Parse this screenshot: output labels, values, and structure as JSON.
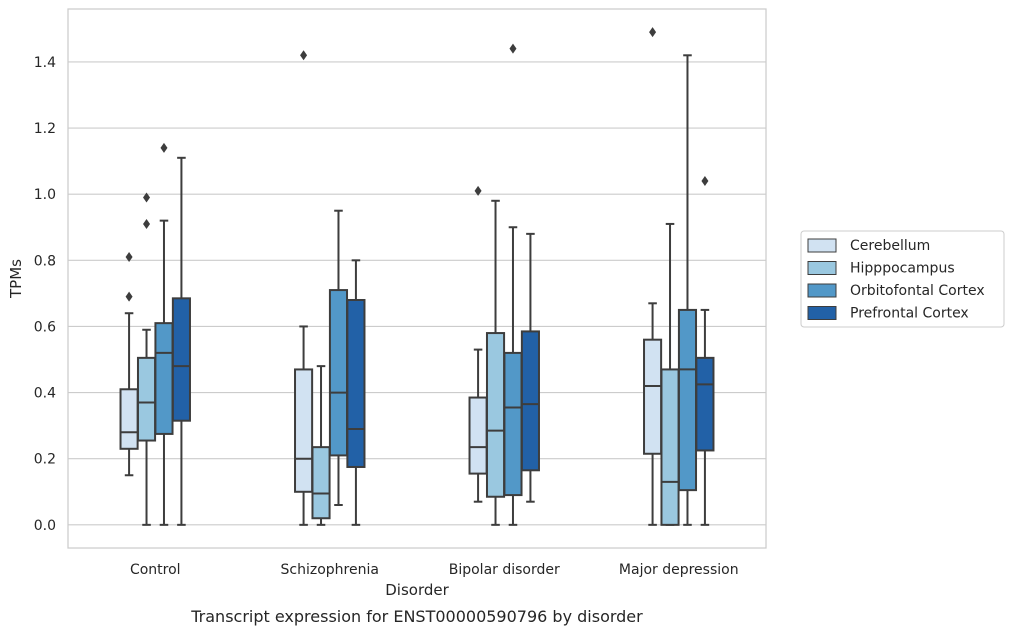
{
  "chart_data": {
    "type": "box",
    "title": "",
    "caption": "Transcript expression for ENST00000590796 by disorder",
    "xlabel": "Disorder",
    "ylabel": "TPMs",
    "ylim": [
      -0.07,
      1.56
    ],
    "yticks": [
      0.0,
      0.2,
      0.4,
      0.6,
      0.8,
      1.0,
      1.2,
      1.4
    ],
    "ytick_labels": [
      "0.0",
      "0.2",
      "0.4",
      "0.6",
      "0.8",
      "1.0",
      "1.2",
      "1.4"
    ],
    "grid": "horizontal",
    "legend_position": "right",
    "categories": [
      "Control",
      "Schizophrenia",
      "Bipolar disorder",
      "Major depression"
    ],
    "series": [
      {
        "name": "Cerebellum",
        "color": "#d1e2f2",
        "boxes": [
          {
            "whisker_low": 0.15,
            "q1": 0.23,
            "median": 0.28,
            "q3": 0.41,
            "whisker_high": 0.64,
            "outliers": [
              0.69,
              0.81
            ]
          },
          {
            "whisker_low": 0.0,
            "q1": 0.1,
            "median": 0.2,
            "q3": 0.47,
            "whisker_high": 0.6,
            "outliers": [
              1.42
            ]
          },
          {
            "whisker_low": 0.07,
            "q1": 0.155,
            "median": 0.235,
            "q3": 0.385,
            "whisker_high": 0.53,
            "outliers": [
              1.01
            ]
          },
          {
            "whisker_low": 0.0,
            "q1": 0.215,
            "median": 0.42,
            "q3": 0.56,
            "whisker_high": 0.67,
            "outliers": [
              1.49
            ]
          }
        ]
      },
      {
        "name": "Hipppocampus",
        "color": "#9ac8e0",
        "boxes": [
          {
            "whisker_low": 0.0,
            "q1": 0.255,
            "median": 0.37,
            "q3": 0.505,
            "whisker_high": 0.59,
            "outliers": [
              0.91,
              0.99
            ]
          },
          {
            "whisker_low": 0.0,
            "q1": 0.02,
            "median": 0.095,
            "q3": 0.235,
            "whisker_high": 0.48,
            "outliers": []
          },
          {
            "whisker_low": 0.0,
            "q1": 0.085,
            "median": 0.285,
            "q3": 0.58,
            "whisker_high": 0.98,
            "outliers": []
          },
          {
            "whisker_low": 0.0,
            "q1": 0.0,
            "median": 0.13,
            "q3": 0.47,
            "whisker_high": 0.91,
            "outliers": []
          }
        ]
      },
      {
        "name": "Orbitofontal Cortex",
        "color": "#5298c8",
        "boxes": [
          {
            "whisker_low": 0.0,
            "q1": 0.275,
            "median": 0.52,
            "q3": 0.61,
            "whisker_high": 0.92,
            "outliers": [
              1.14
            ]
          },
          {
            "whisker_low": 0.06,
            "q1": 0.21,
            "median": 0.4,
            "q3": 0.71,
            "whisker_high": 0.95,
            "outliers": []
          },
          {
            "whisker_low": 0.0,
            "q1": 0.09,
            "median": 0.355,
            "q3": 0.52,
            "whisker_high": 0.9,
            "outliers": [
              1.44
            ]
          },
          {
            "whisker_low": 0.0,
            "q1": 0.105,
            "median": 0.47,
            "q3": 0.65,
            "whisker_high": 1.42,
            "outliers": []
          }
        ]
      },
      {
        "name": "Prefrontal Cortex",
        "color": "#2261a7",
        "boxes": [
          {
            "whisker_low": 0.0,
            "q1": 0.315,
            "median": 0.48,
            "q3": 0.685,
            "whisker_high": 1.11,
            "outliers": []
          },
          {
            "whisker_low": 0.0,
            "q1": 0.175,
            "median": 0.29,
            "q3": 0.68,
            "whisker_high": 0.8,
            "outliers": []
          },
          {
            "whisker_low": 0.07,
            "q1": 0.165,
            "median": 0.365,
            "q3": 0.585,
            "whisker_high": 0.88,
            "outliers": []
          },
          {
            "whisker_low": 0.0,
            "q1": 0.225,
            "median": 0.425,
            "q3": 0.505,
            "whisker_high": 0.65,
            "outliers": [
              1.04
            ]
          }
        ]
      }
    ]
  }
}
